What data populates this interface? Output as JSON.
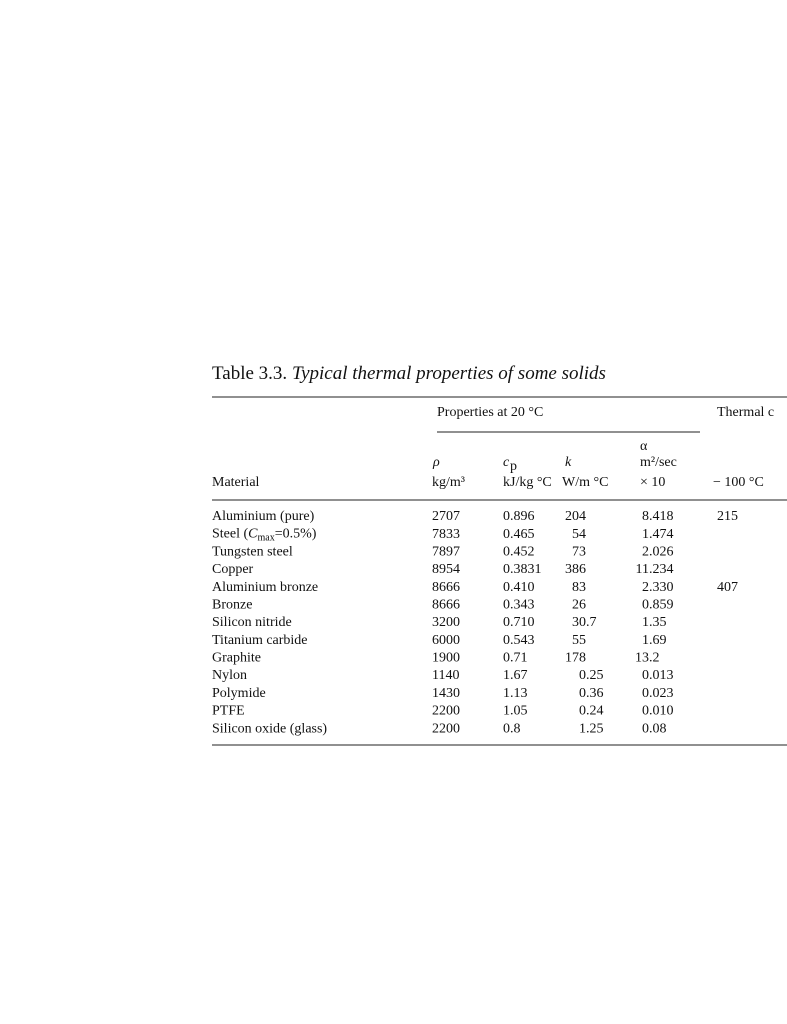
{
  "caption": {
    "number": "Table 3.3.",
    "title": "Typical thermal properties of some solids"
  },
  "table": {
    "group_headers": [
      "Properties at 20 °C",
      "Thermal c"
    ],
    "columns": [
      [
        "Material"
      ],
      [
        "ρ",
        "kg/m³"
      ],
      [
        "c",
        "p",
        "kJ/kg °C"
      ],
      [
        "k",
        "W/m °C"
      ],
      [
        "α",
        "m²/sec",
        "× 10"
      ],
      [
        "− 100 °C"
      ]
    ],
    "rows": [
      [
        "Aluminium (pure)",
        "2707",
        "0.896",
        "204",
        "8.418",
        "215"
      ],
      [
        [
          "Steel (",
          "C",
          "max",
          "=0.5%)"
        ],
        "7833",
        "0.465",
        "54",
        "1.474",
        null
      ],
      [
        "Tungsten steel",
        "7897",
        "0.452",
        "73",
        "2.026",
        null
      ],
      [
        "Copper",
        "8954",
        "0.3831",
        "386",
        "11.234",
        null
      ],
      [
        "Aluminium bronze",
        "8666",
        "0.410",
        "83",
        "2.330",
        "407"
      ],
      [
        "Bronze",
        "8666",
        "0.343",
        "26",
        "0.859",
        null
      ],
      [
        "Silicon nitride",
        "3200",
        "0.710",
        "30.7",
        "1.35",
        null
      ],
      [
        "Titanium carbide",
        "6000",
        "0.543",
        "55",
        "1.69",
        null
      ],
      [
        "Graphite",
        "1900",
        "0.71",
        "178",
        "13.2",
        null
      ],
      [
        "Nylon",
        "1140",
        "1.67",
        "0.25",
        "0.013",
        null
      ],
      [
        "Polymide",
        "1430",
        "1.13",
        "0.36",
        "0.023",
        null
      ],
      [
        "PTFE",
        "2200",
        "1.05",
        "0.24",
        "0.010",
        null
      ],
      [
        "Silicon oxide (glass)",
        "2200",
        "0.8",
        "1.25",
        "0.08",
        null
      ]
    ]
  }
}
